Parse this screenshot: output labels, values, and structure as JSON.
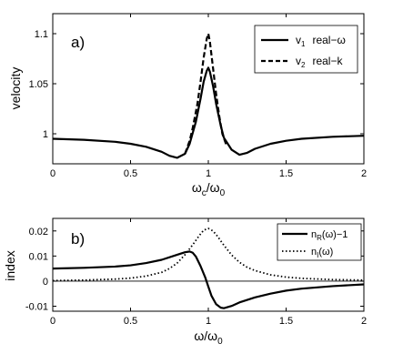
{
  "chart_data": [
    {
      "panel": "a)",
      "type": "line",
      "xlabel_main": "ω",
      "xlabel_sub1": "c",
      "xlabel_slash": "/ω",
      "xlabel_sub2": "0",
      "ylabel": "velocity",
      "xlim": [
        0,
        2
      ],
      "ylim": [
        0.97,
        1.12
      ],
      "x_ticks": [
        "0",
        "0.5",
        "1",
        "1.5",
        "2"
      ],
      "x_tick_values": [
        0,
        0.5,
        1,
        1.5,
        2
      ],
      "y_ticks": [
        "1",
        "1.05",
        "1.1"
      ],
      "y_tick_values": [
        1.0,
        1.05,
        1.1
      ],
      "grid": false,
      "legend_position": "top-right",
      "legend": [
        {
          "var": "v",
          "sub": "1",
          "desc": "real−ω",
          "style": "solid"
        },
        {
          "var": "v",
          "sub": "2",
          "desc": "real−k",
          "style": "dashed"
        }
      ],
      "series": [
        {
          "name": "v1 real−ω",
          "style": "solid",
          "x": [
            0,
            0.2,
            0.4,
            0.5,
            0.6,
            0.7,
            0.75,
            0.8,
            0.85,
            0.88,
            0.92,
            0.95,
            0.97,
            0.99,
            1.0,
            1.01,
            1.03,
            1.05,
            1.08,
            1.1,
            1.15,
            1.2,
            1.25,
            1.3,
            1.4,
            1.5,
            1.6,
            1.8,
            2.0
          ],
          "y": [
            0.995,
            0.994,
            0.992,
            0.99,
            0.987,
            0.982,
            0.978,
            0.976,
            0.98,
            0.99,
            1.012,
            1.035,
            1.052,
            1.063,
            1.066,
            1.062,
            1.048,
            1.03,
            1.008,
            0.996,
            0.984,
            0.979,
            0.981,
            0.985,
            0.99,
            0.993,
            0.995,
            0.997,
            0.998
          ]
        },
        {
          "name": "v2 real−k",
          "style": "dashed",
          "x": [
            0.85,
            0.88,
            0.9,
            0.93,
            0.95,
            0.97,
            0.99,
            1.0,
            1.01,
            1.03,
            1.05,
            1.07,
            1.09,
            1.12
          ],
          "y": [
            0.98,
            0.993,
            1.006,
            1.03,
            1.052,
            1.076,
            1.095,
            1.1,
            1.092,
            1.066,
            1.04,
            1.018,
            1.0,
            0.987
          ]
        }
      ]
    },
    {
      "panel": "b)",
      "type": "line",
      "xlabel_main": "ω/ω",
      "xlabel_sub2": "0",
      "ylabel": "index",
      "xlim": [
        0,
        2
      ],
      "ylim": [
        -0.012,
        0.025
      ],
      "x_ticks": [
        "0",
        "0.5",
        "1",
        "1.5",
        "2"
      ],
      "x_tick_values": [
        0,
        0.5,
        1,
        1.5,
        2
      ],
      "y_ticks": [
        "-0.01",
        "0",
        "0.01",
        "0.02"
      ],
      "y_tick_values": [
        -0.01,
        0,
        0.01,
        0.02
      ],
      "grid": false,
      "zero_line": true,
      "legend_position": "top-right",
      "legend": [
        {
          "main": "n",
          "sub": "R",
          "rest": "(ω)−1",
          "style": "solid"
        },
        {
          "main": "n",
          "sub": "I",
          "rest": "(ω)",
          "style": "dotted"
        }
      ],
      "series": [
        {
          "name": "nR(ω)−1",
          "style": "solid",
          "x": [
            0,
            0.2,
            0.4,
            0.5,
            0.6,
            0.7,
            0.8,
            0.85,
            0.88,
            0.9,
            0.92,
            0.95,
            0.98,
            1.0,
            1.02,
            1.05,
            1.08,
            1.1,
            1.15,
            1.2,
            1.3,
            1.4,
            1.5,
            1.6,
            1.8,
            2.0
          ],
          "y": [
            0.005,
            0.0053,
            0.0058,
            0.0063,
            0.0072,
            0.0085,
            0.0105,
            0.0115,
            0.0118,
            0.0113,
            0.0098,
            0.006,
            0.0015,
            -0.0022,
            -0.0058,
            -0.0092,
            -0.0106,
            -0.0108,
            -0.0099,
            -0.0085,
            -0.0065,
            -0.005,
            -0.0038,
            -0.003,
            -0.002,
            -0.0013
          ]
        },
        {
          "name": "nI(ω)",
          "style": "dotted",
          "x": [
            0,
            0.2,
            0.4,
            0.5,
            0.6,
            0.7,
            0.75,
            0.8,
            0.85,
            0.9,
            0.94,
            0.97,
            1.0,
            1.03,
            1.06,
            1.1,
            1.15,
            1.2,
            1.25,
            1.3,
            1.4,
            1.5,
            1.6,
            1.8,
            2.0
          ],
          "y": [
            0.0002,
            0.0004,
            0.0008,
            0.0012,
            0.002,
            0.0035,
            0.005,
            0.0072,
            0.0105,
            0.0145,
            0.018,
            0.0203,
            0.021,
            0.02,
            0.0178,
            0.0143,
            0.0104,
            0.0075,
            0.0055,
            0.0042,
            0.0025,
            0.0016,
            0.0011,
            0.0006,
            0.0004
          ]
        }
      ]
    }
  ]
}
